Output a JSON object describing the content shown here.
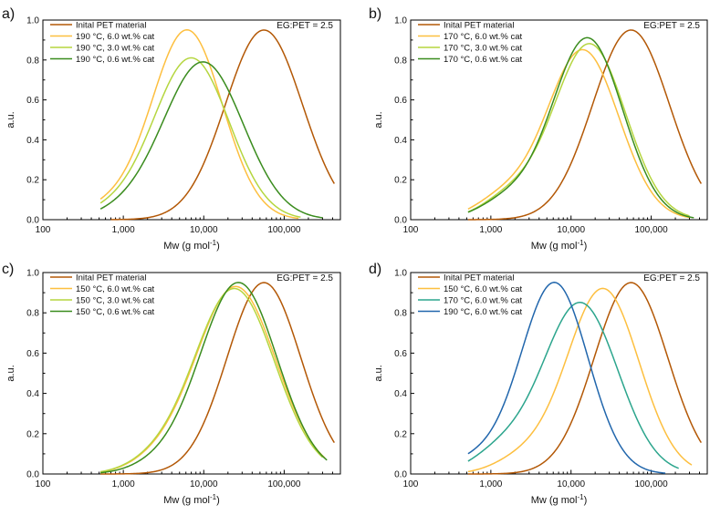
{
  "chart_data": [
    {
      "type": "line",
      "panel_label": "a)",
      "annotation": "EG:PET = 2.5",
      "xlabel": "Mw (g mol",
      "xlabel_sup": "-1",
      "xlabel_close": ")",
      "ylabel": "a.u.",
      "xscale": "log",
      "xlim": [
        100,
        500000
      ],
      "ylim": [
        0,
        1.0
      ],
      "xticks": [
        100,
        1000,
        10000,
        100000
      ],
      "xtick_labels": [
        "100",
        "1,000",
        "10,000",
        "100,000"
      ],
      "yticks": [
        0.0,
        0.2,
        0.4,
        0.6,
        0.8,
        1.0
      ],
      "ytick_labels": [
        "0.0",
        "0.2",
        "0.4",
        "0.6",
        "0.8",
        "1.0"
      ],
      "series": [
        {
          "name": "Inital PET material",
          "color": "#b35806",
          "peak_x": 56000,
          "peak_y": 0.95,
          "x_min": 700,
          "x_max": 420000,
          "sigma": 0.48
        },
        {
          "name": "190 °C, 6.0 wt.% cat",
          "color": "#fdbf3f",
          "peak_x": 6200,
          "peak_y": 0.95,
          "x_min": 520,
          "x_max": 150000,
          "sigma": 0.44,
          "shoulder": 0.06
        },
        {
          "name": "190 °C, 3.0 wt.% cat",
          "color": "#b5d63f",
          "peak_x": 7000,
          "peak_y": 0.81,
          "x_min": 520,
          "x_max": 160000,
          "sigma": 0.47,
          "shoulder": 0.05
        },
        {
          "name": "190 °C, 0.6 wt.% cat",
          "color": "#3a8c1e",
          "peak_x": 9800,
          "peak_y": 0.79,
          "x_min": 520,
          "x_max": 300000,
          "sigma": 0.5,
          "shoulder": 0.04
        }
      ]
    },
    {
      "type": "line",
      "panel_label": "b)",
      "annotation": "EG:PET = 2.5",
      "xlabel": "Mw (g mol",
      "xlabel_sup": "-1",
      "xlabel_close": ")",
      "ylabel": "a.u.",
      "xscale": "log",
      "xlim": [
        100,
        500000
      ],
      "ylim": [
        0,
        1.0
      ],
      "xticks": [
        100,
        1000,
        10000,
        100000
      ],
      "xtick_labels": [
        "100",
        "1,000",
        "10,000",
        "100,000"
      ],
      "yticks": [
        0.0,
        0.2,
        0.4,
        0.6,
        0.8,
        1.0
      ],
      "ytick_labels": [
        "0.0",
        "0.2",
        "0.4",
        "0.6",
        "0.8",
        "1.0"
      ],
      "series": [
        {
          "name": "Inital PET material",
          "color": "#b35806",
          "peak_x": 56000,
          "peak_y": 0.95,
          "x_min": 520,
          "x_max": 420000,
          "sigma": 0.48
        },
        {
          "name": "170 °C, 6.0 wt.% cat",
          "color": "#fdbf3f",
          "peak_x": 14000,
          "peak_y": 0.85,
          "x_min": 520,
          "x_max": 300000,
          "sigma": 0.45,
          "shoulder": 0.12
        },
        {
          "name": "170 °C, 3.0 wt.% cat",
          "color": "#b5d63f",
          "peak_x": 17000,
          "peak_y": 0.88,
          "x_min": 520,
          "x_max": 300000,
          "sigma": 0.45,
          "shoulder": 0.12
        },
        {
          "name": "170 °C, 0.6 wt.% cat",
          "color": "#3a8c1e",
          "peak_x": 16000,
          "peak_y": 0.91,
          "x_min": 520,
          "x_max": 340000,
          "sigma": 0.44,
          "shoulder": 0.1
        }
      ]
    },
    {
      "type": "line",
      "panel_label": "c)",
      "annotation": "EG:PET = 2.5",
      "xlabel": "Mw (g mol",
      "xlabel_sup": "-1",
      "xlabel_close": ")",
      "ylabel": "a.u.",
      "xscale": "log",
      "xlim": [
        100,
        500000
      ],
      "ylim": [
        0,
        1.0
      ],
      "xticks": [
        100,
        1000,
        10000,
        100000
      ],
      "xtick_labels": [
        "100",
        "1,000",
        "10,000",
        "100,000"
      ],
      "yticks": [
        0.0,
        0.2,
        0.4,
        0.6,
        0.8,
        1.0
      ],
      "ytick_labels": [
        "0.0",
        "0.2",
        "0.4",
        "0.6",
        "0.8",
        "1.0"
      ],
      "series": [
        {
          "name": "Inital PET material",
          "color": "#b35806",
          "peak_x": 56000,
          "peak_y": 0.95,
          "x_min": 520,
          "x_max": 420000,
          "sigma": 0.46
        },
        {
          "name": "150 °C, 6.0 wt.% cat",
          "color": "#fdbf3f",
          "peak_x": 25000,
          "peak_y": 0.93,
          "x_min": 520,
          "x_max": 320000,
          "sigma": 0.5,
          "shoulder": 0.05
        },
        {
          "name": "150 °C, 3.0 wt.% cat",
          "color": "#b5d63f",
          "peak_x": 24000,
          "peak_y": 0.92,
          "x_min": 520,
          "x_max": 300000,
          "sigma": 0.5,
          "shoulder": 0.05
        },
        {
          "name": "150 °C, 0.6 wt.% cat",
          "color": "#3a8c1e",
          "peak_x": 27000,
          "peak_y": 0.95,
          "x_min": 520,
          "x_max": 340000,
          "sigma": 0.48,
          "shoulder": 0.04
        }
      ]
    },
    {
      "type": "line",
      "panel_label": "d)",
      "annotation": "EG:PET = 2.5",
      "xlabel": "Mw (g mol",
      "xlabel_sup": "-1",
      "xlabel_close": ")",
      "ylabel": "a.u.",
      "xscale": "log",
      "xlim": [
        100,
        500000
      ],
      "ylim": [
        0,
        1.0
      ],
      "xticks": [
        100,
        1000,
        10000,
        100000
      ],
      "xtick_labels": [
        "100",
        "1,000",
        "10,000",
        "100,000"
      ],
      "yticks": [
        0.0,
        0.2,
        0.4,
        0.6,
        0.8,
        1.0
      ],
      "ytick_labels": [
        "0.0",
        "0.2",
        "0.4",
        "0.6",
        "0.8",
        "1.0"
      ],
      "series": [
        {
          "name": "Inital PET material",
          "color": "#b35806",
          "peak_x": 56000,
          "peak_y": 0.95,
          "x_min": 520,
          "x_max": 420000,
          "sigma": 0.46
        },
        {
          "name": "150 °C, 6.0 wt.% cat",
          "color": "#fdbf3f",
          "peak_x": 25000,
          "peak_y": 0.92,
          "x_min": 520,
          "x_max": 320000,
          "sigma": 0.45,
          "shoulder": 0.08
        },
        {
          "name": "170 °C, 6.0 wt.% cat",
          "color": "#2ca58d",
          "peak_x": 13000,
          "peak_y": 0.85,
          "x_min": 520,
          "x_max": 220000,
          "sigma": 0.47,
          "shoulder": 0.12
        },
        {
          "name": "190 °C, 6.0 wt.% cat",
          "color": "#2166ac",
          "peak_x": 6200,
          "peak_y": 0.95,
          "x_min": 520,
          "x_max": 150000,
          "sigma": 0.42,
          "shoulder": 0.07
        }
      ]
    }
  ]
}
